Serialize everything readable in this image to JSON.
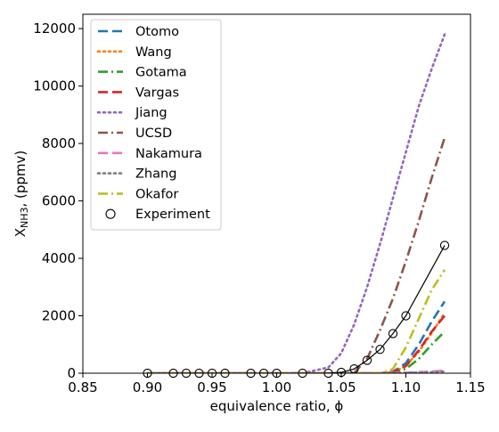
{
  "chart_data": {
    "type": "line",
    "xlabel": "equivalence ratio, ϕ",
    "ylabel": "X",
    "ylabel_sub": "NH3",
    "ylabel_unit": ", (ppmv)",
    "xlim": [
      0.85,
      1.15
    ],
    "ylim": [
      0,
      12500
    ],
    "x_ticks": [
      0.85,
      0.9,
      0.95,
      1.0,
      1.05,
      1.1,
      1.15
    ],
    "x_tick_labels": [
      "0.85",
      "0.90",
      "0.95",
      "1.00",
      "1.05",
      "1.10",
      "1.15"
    ],
    "y_ticks": [
      0,
      2000,
      4000,
      6000,
      8000,
      10000,
      12000
    ],
    "y_tick_labels": [
      "0",
      "2000",
      "4000",
      "6000",
      "8000",
      "10000",
      "12000"
    ],
    "grid": false,
    "legend_position": "top-left",
    "series": [
      {
        "name": "Otomo",
        "color": "#1f77b4",
        "dash": "dashed",
        "x": [
          0.9,
          1.0,
          1.06,
          1.08,
          1.09,
          1.1,
          1.11,
          1.12,
          1.13
        ],
        "y": [
          0,
          0,
          0,
          0,
          50,
          350,
          1000,
          1800,
          2500
        ]
      },
      {
        "name": "Wang",
        "color": "#ff7f0e",
        "dash": "dotted",
        "x": [
          0.9,
          1.0,
          1.06,
          1.08,
          1.09,
          1.1,
          1.11,
          1.12,
          1.13
        ],
        "y": [
          0,
          0,
          0,
          0,
          40,
          250,
          750,
          1400,
          2100
        ]
      },
      {
        "name": "Gotama",
        "color": "#2ca02c",
        "dash": "dashdot",
        "x": [
          0.9,
          1.0,
          1.06,
          1.08,
          1.09,
          1.1,
          1.11,
          1.12,
          1.13
        ],
        "y": [
          0,
          0,
          0,
          0,
          20,
          150,
          500,
          1000,
          1450
        ]
      },
      {
        "name": "Vargas",
        "color": "#d62728",
        "dash": "dashed",
        "x": [
          0.9,
          1.0,
          1.06,
          1.08,
          1.09,
          1.1,
          1.11,
          1.12,
          1.13
        ],
        "y": [
          0,
          0,
          0,
          0,
          35,
          250,
          800,
          1450,
          2000
        ]
      },
      {
        "name": "Jiang",
        "color": "#9467bd",
        "dash": "dotted",
        "x": [
          0.9,
          1.0,
          1.02,
          1.04,
          1.05,
          1.06,
          1.07,
          1.08,
          1.09,
          1.1,
          1.11,
          1.12,
          1.13
        ],
        "y": [
          0,
          0,
          0,
          200,
          700,
          1700,
          3000,
          4500,
          6100,
          7700,
          9300,
          10600,
          11800
        ]
      },
      {
        "name": "UCSD",
        "color": "#8c564b",
        "dash": "dashdot",
        "x": [
          0.9,
          1.0,
          1.05,
          1.06,
          1.07,
          1.08,
          1.09,
          1.1,
          1.11,
          1.12,
          1.13
        ],
        "y": [
          0,
          0,
          0,
          20,
          500,
          1500,
          2600,
          3900,
          5300,
          6800,
          8200
        ]
      },
      {
        "name": "Nakamura",
        "color": "#e377c2",
        "dash": "dashed",
        "x": [
          0.9,
          1.0,
          1.08,
          1.1,
          1.12,
          1.13
        ],
        "y": [
          0,
          0,
          0,
          20,
          60,
          90
        ]
      },
      {
        "name": "Zhang",
        "color": "#7f7f7f",
        "dash": "dotted",
        "x": [
          0.9,
          1.0,
          1.08,
          1.1,
          1.12,
          1.13
        ],
        "y": [
          0,
          0,
          0,
          10,
          40,
          60
        ]
      },
      {
        "name": "Okafor",
        "color": "#bcbd22",
        "dash": "dashdot",
        "x": [
          0.9,
          1.0,
          1.08,
          1.09,
          1.1,
          1.11,
          1.12,
          1.13
        ],
        "y": [
          0,
          0,
          0,
          150,
          900,
          1900,
          2900,
          3600
        ]
      }
    ],
    "experiment": {
      "name": "Experiment",
      "x": [
        0.9,
        0.92,
        0.93,
        0.94,
        0.95,
        0.96,
        0.98,
        0.99,
        1.0,
        1.02,
        1.04,
        1.05,
        1.06,
        1.07,
        1.08,
        1.09,
        1.1,
        1.13
      ],
      "y": [
        0,
        0,
        0,
        0,
        0,
        0,
        0,
        0,
        0,
        0,
        0,
        30,
        150,
        450,
        830,
        1380,
        2000,
        4450
      ]
    }
  }
}
